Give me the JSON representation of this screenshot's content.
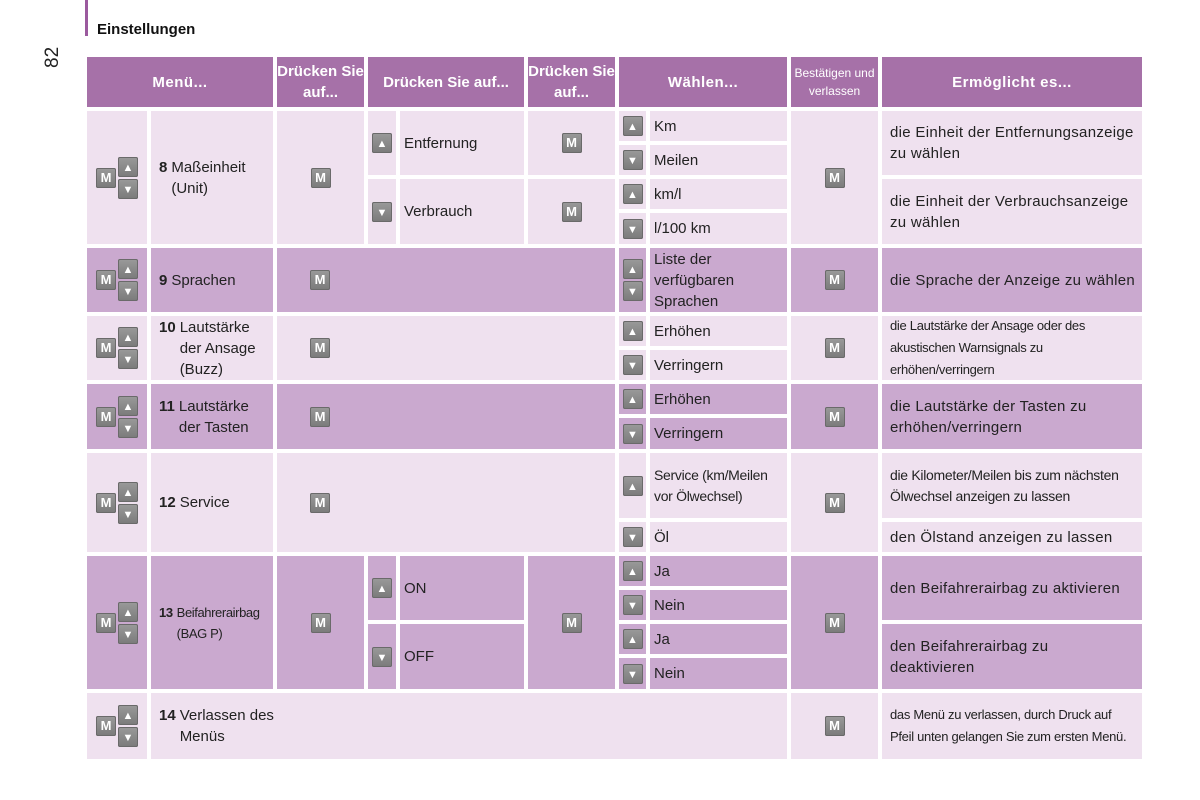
{
  "header": {
    "section_title": "Einstellungen",
    "page_number": "82"
  },
  "table": {
    "columns": [
      "Menü...",
      "Drücken Sie auf...",
      "Drücken Sie auf...",
      "Drücken Sie auf...",
      "Wählen...",
      "Bestätigen und verlassen",
      "Ermöglicht es..."
    ],
    "rows": {
      "r8": {
        "num": "8",
        "label": "Maßeinheit (Unit)",
        "sub1": "Entfernung",
        "sub2": "Verbrauch",
        "opt1": "Km",
        "opt2": "Meilen",
        "opt3": "km/l",
        "opt4": "l/100 km",
        "desc1": "die Einheit der Entfernungsanzeige zu wählen",
        "desc2": "die Einheit der Verbrauchsanzeige zu wählen"
      },
      "r9": {
        "num": "9",
        "label": "Sprachen",
        "opt1": "Liste der verfügbaren Sprachen",
        "desc1": "die Sprache der Anzeige zu wählen"
      },
      "r10": {
        "num": "10",
        "label": "Lautstärke der Ansage (Buzz)",
        "opt1": "Erhöhen",
        "opt2": "Verringern",
        "desc1": "die Lautstärke der Ansage oder des akustischen Warnsignals zu erhöhen/verringern"
      },
      "r11": {
        "num": "11",
        "label": "Lautstärke der Tasten",
        "opt1": "Erhöhen",
        "opt2": "Verringern",
        "desc1": "die Lautstärke der Tasten zu erhöhen/verringern"
      },
      "r12": {
        "num": "12",
        "label": "Service",
        "opt1": "Service (km/Meilen vor Ölwechsel)",
        "opt2": "Öl",
        "desc1": "die Kilometer/Meilen bis zum nächsten Ölwechsel anzeigen zu lassen",
        "desc2": "den Ölstand anzeigen zu lassen"
      },
      "r13": {
        "num": "13",
        "label": "Beifahrerairbag (BAG P)",
        "sub1": "ON",
        "sub2": "OFF",
        "opt1": "Ja",
        "opt2": "Nein",
        "opt3": "Ja",
        "opt4": "Nein",
        "desc1": "den Beifahrerairbag zu aktivieren",
        "desc2": "den Beifahrerairbag zu deaktivieren"
      },
      "r14": {
        "num": "14",
        "label": "Verlassen des Menüs",
        "desc1": "das Menü zu verlassen, durch Druck auf Pfeil unten gelangen Sie zum ersten Menü."
      }
    }
  },
  "icons": {
    "m_key": "M",
    "up": "up-arrow-icon",
    "down": "down-arrow-icon"
  },
  "colors": {
    "header": "#a671a8",
    "light_row": "#efe1ef",
    "dark_row": "#caa9cf",
    "icon": "#8a8a8a"
  }
}
